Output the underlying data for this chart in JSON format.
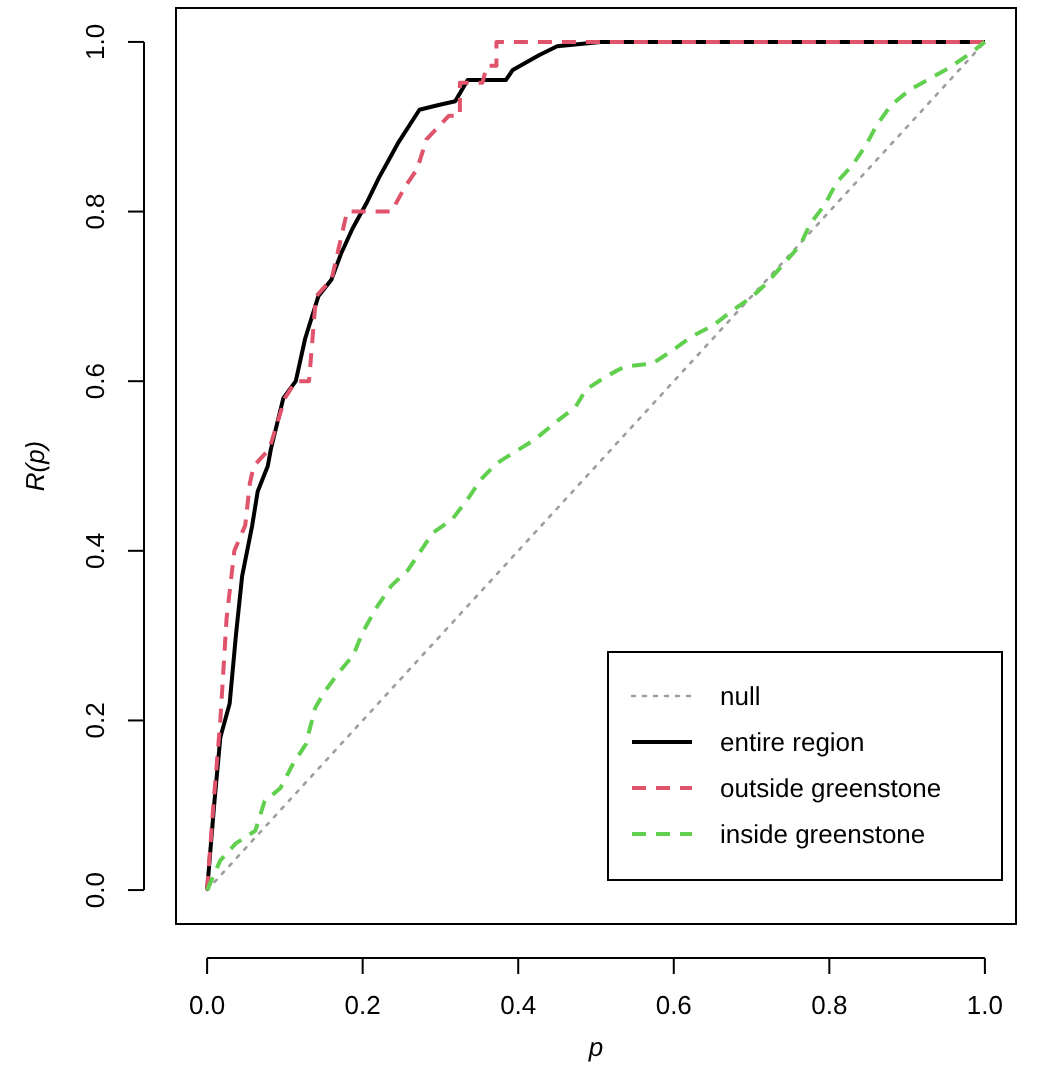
{
  "chart_data": {
    "type": "line",
    "xlabel": "p",
    "ylabel": "R(p)",
    "xlim": [
      -0.04,
      1.04
    ],
    "ylim": [
      -0.04,
      1.04
    ],
    "xticks": [
      {
        "value": 0,
        "label": "0.0"
      },
      {
        "value": 0.2,
        "label": "0.2"
      },
      {
        "value": 0.4,
        "label": "0.4"
      },
      {
        "value": 0.6,
        "label": "0.6"
      },
      {
        "value": 0.8,
        "label": "0.8"
      },
      {
        "value": 1,
        "label": "1.0"
      }
    ],
    "yticks": [
      {
        "value": 0,
        "label": "0.0"
      },
      {
        "value": 0.2,
        "label": "0.2"
      },
      {
        "value": 0.4,
        "label": "0.4"
      },
      {
        "value": 0.6,
        "label": "0.6"
      },
      {
        "value": 0.8,
        "label": "0.8"
      },
      {
        "value": 1,
        "label": "1.0"
      }
    ],
    "grid": false,
    "legend": "bottom right",
    "marker": "none",
    "series": [
      {
        "name": "null",
        "color": "#9e9e9e",
        "line_style": "dotted",
        "x": [
          0,
          1
        ],
        "values": [
          0,
          1
        ]
      },
      {
        "name": "entire region",
        "color": "#000000",
        "line_style": "solid",
        "x": [
          0,
          0.009,
          0.017,
          0.029,
          0.037,
          0.045,
          0.058,
          0.065,
          0.078,
          0.082,
          0.098,
          0.114,
          0.126,
          0.143,
          0.16,
          0.172,
          0.187,
          0.205,
          0.221,
          0.233,
          0.245,
          0.273,
          0.295,
          0.319,
          0.335,
          0.384,
          0.393,
          0.426,
          0.45,
          0.506,
          1
        ],
        "values": [
          0,
          0.1,
          0.18,
          0.22,
          0.3,
          0.37,
          0.43,
          0.47,
          0.5,
          0.52,
          0.58,
          0.6,
          0.65,
          0.7,
          0.72,
          0.75,
          0.78,
          0.81,
          0.84,
          0.86,
          0.88,
          0.92,
          0.925,
          0.93,
          0.955,
          0.955,
          0.967,
          0.984,
          0.995,
          1,
          1
        ]
      },
      {
        "name": "outside greenstone",
        "color": "#df536b",
        "line_style": "dashed",
        "x": [
          0,
          0.008,
          0.017,
          0.025,
          0.035,
          0.049,
          0.055,
          0.06,
          0.08,
          0.1,
          0.114,
          0.131,
          0.14,
          0.16,
          0.18,
          0.237,
          0.255,
          0.27,
          0.282,
          0.311,
          0.325,
          0.325,
          0.354,
          0.36,
          0.372,
          0.372,
          1
        ],
        "values": [
          0,
          0.1,
          0.2,
          0.32,
          0.4,
          0.43,
          0.48,
          0.5,
          0.52,
          0.58,
          0.6,
          0.6,
          0.7,
          0.72,
          0.8,
          0.8,
          0.83,
          0.85,
          0.885,
          0.913,
          0.913,
          0.952,
          0.952,
          0.972,
          0.972,
          1,
          1
        ]
      },
      {
        "name": "inside greenstone",
        "color": "#61d04f",
        "line_style": "dashed",
        "x": [
          0,
          0.017,
          0.037,
          0.062,
          0.074,
          0.094,
          0.11,
          0.127,
          0.139,
          0.151,
          0.168,
          0.188,
          0.2,
          0.217,
          0.237,
          0.258,
          0.29,
          0.315,
          0.335,
          0.352,
          0.372,
          0.393,
          0.421,
          0.446,
          0.474,
          0.487,
          0.512,
          0.536,
          0.573,
          0.598,
          0.622,
          0.651,
          0.675,
          0.7,
          0.72,
          0.741,
          0.763,
          0.775,
          0.794,
          0.81,
          0.83,
          0.847,
          0.861,
          0.879,
          0.904,
          0.928,
          0.955,
          0.982,
          1
        ],
        "values": [
          0,
          0.035,
          0.055,
          0.07,
          0.105,
          0.12,
          0.148,
          0.172,
          0.215,
          0.234,
          0.255,
          0.277,
          0.304,
          0.332,
          0.359,
          0.377,
          0.421,
          0.437,
          0.461,
          0.484,
          0.503,
          0.515,
          0.531,
          0.55,
          0.57,
          0.59,
          0.605,
          0.617,
          0.621,
          0.636,
          0.652,
          0.666,
          0.683,
          0.699,
          0.716,
          0.738,
          0.761,
          0.785,
          0.808,
          0.835,
          0.855,
          0.878,
          0.902,
          0.925,
          0.944,
          0.956,
          0.97,
          0.987,
          1
        ]
      }
    ]
  }
}
